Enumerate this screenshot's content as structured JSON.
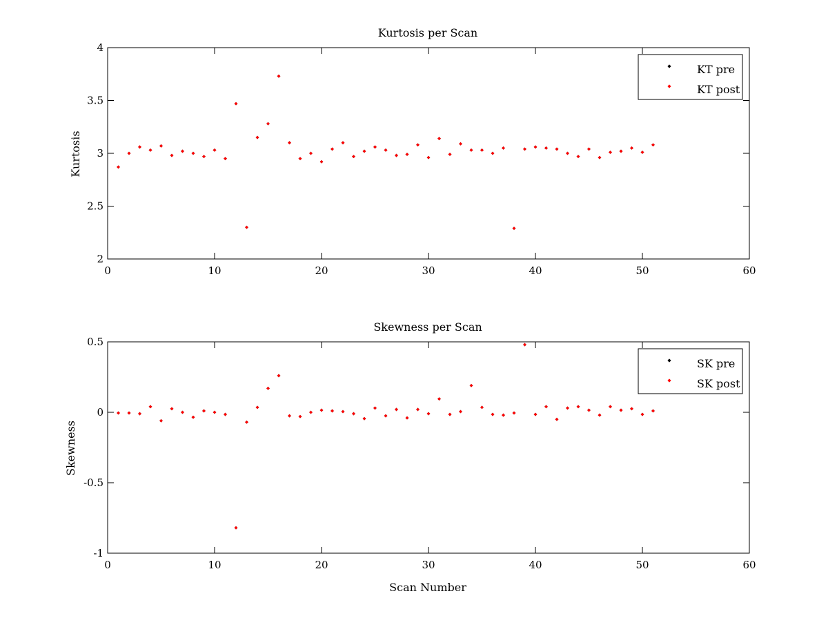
{
  "chart_data": [
    {
      "type": "scatter",
      "title": "Kurtosis per Scan",
      "xlabel": "",
      "ylabel": "Kurtosis",
      "xlim": [
        0,
        60
      ],
      "ylim": [
        2,
        4
      ],
      "xticks": [
        0,
        10,
        20,
        30,
        40,
        50,
        60
      ],
      "yticks": [
        2,
        2.5,
        3,
        3.5,
        4
      ],
      "xtick_labels": [
        "0",
        "10",
        "20",
        "30",
        "40",
        "50",
        "60"
      ],
      "ytick_labels": [
        "2",
        "2.5",
        "3",
        "3.5",
        "4"
      ],
      "grid": false,
      "legend_position": "top-right",
      "x": [
        1,
        2,
        3,
        4,
        5,
        6,
        7,
        8,
        9,
        10,
        11,
        12,
        13,
        14,
        15,
        16,
        17,
        18,
        19,
        20,
        21,
        22,
        23,
        24,
        25,
        26,
        27,
        28,
        29,
        30,
        31,
        32,
        33,
        34,
        35,
        36,
        37,
        38,
        39,
        40,
        41,
        42,
        43,
        44,
        45,
        46,
        47,
        48,
        49,
        50,
        51
      ],
      "series": [
        {
          "name": "KT pre",
          "color": "#000000",
          "values": [
            2.87,
            3.0,
            3.06,
            3.03,
            3.07,
            2.98,
            3.02,
            3.0,
            2.97,
            3.03,
            2.95,
            3.47,
            2.3,
            3.15,
            3.28,
            3.73,
            3.1,
            2.95,
            3.0,
            2.92,
            3.04,
            3.1,
            2.97,
            3.02,
            3.06,
            3.03,
            2.98,
            2.99,
            3.08,
            2.96,
            3.14,
            2.99,
            3.09,
            3.03,
            3.03,
            3.0,
            3.05,
            2.29,
            3.04,
            3.06,
            3.05,
            3.04,
            3.0,
            2.97,
            3.04,
            2.96,
            3.01,
            3.02,
            3.05,
            3.01,
            3.08
          ]
        },
        {
          "name": "KT post",
          "color": "#ff0000",
          "values": [
            2.87,
            3.0,
            3.06,
            3.03,
            3.07,
            2.98,
            3.02,
            3.0,
            2.97,
            3.03,
            2.95,
            3.47,
            2.3,
            3.15,
            3.28,
            3.73,
            3.1,
            2.95,
            3.0,
            2.92,
            3.04,
            3.1,
            2.97,
            3.02,
            3.06,
            3.03,
            2.98,
            2.99,
            3.08,
            2.96,
            3.14,
            2.99,
            3.09,
            3.03,
            3.03,
            3.0,
            3.05,
            2.29,
            3.04,
            3.06,
            3.05,
            3.04,
            3.0,
            2.97,
            3.04,
            2.96,
            3.01,
            3.02,
            3.05,
            3.01,
            3.08
          ]
        }
      ]
    },
    {
      "type": "scatter",
      "title": "Skewness per Scan",
      "xlabel": "Scan Number",
      "ylabel": "Skewness",
      "xlim": [
        0,
        60
      ],
      "ylim": [
        -1,
        0.5
      ],
      "xticks": [
        0,
        10,
        20,
        30,
        40,
        50,
        60
      ],
      "yticks": [
        -1,
        -0.5,
        0,
        0.5
      ],
      "xtick_labels": [
        "0",
        "10",
        "20",
        "30",
        "40",
        "50",
        "60"
      ],
      "ytick_labels": [
        "-1",
        "-0.5",
        "0",
        "0.5"
      ],
      "grid": false,
      "legend_position": "top-right",
      "x": [
        1,
        2,
        3,
        4,
        5,
        6,
        7,
        8,
        9,
        10,
        11,
        12,
        13,
        14,
        15,
        16,
        17,
        18,
        19,
        20,
        21,
        22,
        23,
        24,
        25,
        26,
        27,
        28,
        29,
        30,
        31,
        32,
        33,
        34,
        35,
        36,
        37,
        38,
        39,
        40,
        41,
        42,
        43,
        44,
        45,
        46,
        47,
        48,
        49,
        50,
        51
      ],
      "series": [
        {
          "name": "SK pre",
          "color": "#000000",
          "values": [
            -0.005,
            -0.005,
            -0.01,
            0.04,
            -0.06,
            0.025,
            0.0,
            -0.035,
            0.01,
            0.0,
            -0.015,
            -0.82,
            -0.07,
            0.035,
            0.17,
            0.26,
            -0.025,
            -0.03,
            0.0,
            0.015,
            0.01,
            0.005,
            -0.01,
            -0.045,
            0.03,
            -0.025,
            0.02,
            -0.04,
            0.02,
            -0.01,
            0.095,
            -0.015,
            0.005,
            0.19,
            0.035,
            -0.015,
            -0.02,
            -0.005,
            0.48,
            -0.015,
            0.04,
            -0.05,
            0.03,
            0.04,
            0.015,
            -0.02,
            0.04,
            0.015,
            0.025,
            -0.015,
            0.01
          ]
        },
        {
          "name": "SK post",
          "color": "#ff0000",
          "values": [
            -0.005,
            -0.005,
            -0.01,
            0.04,
            -0.06,
            0.025,
            0.0,
            -0.035,
            0.01,
            0.0,
            -0.015,
            -0.82,
            -0.07,
            0.035,
            0.17,
            0.26,
            -0.025,
            -0.03,
            0.0,
            0.015,
            0.01,
            0.005,
            -0.01,
            -0.045,
            0.03,
            -0.025,
            0.02,
            -0.04,
            0.02,
            -0.01,
            0.095,
            -0.015,
            0.005,
            0.19,
            0.035,
            -0.015,
            -0.02,
            -0.005,
            0.48,
            -0.015,
            0.04,
            -0.05,
            0.03,
            0.04,
            0.015,
            -0.02,
            0.04,
            0.015,
            0.025,
            -0.015,
            0.01
          ]
        }
      ]
    }
  ]
}
